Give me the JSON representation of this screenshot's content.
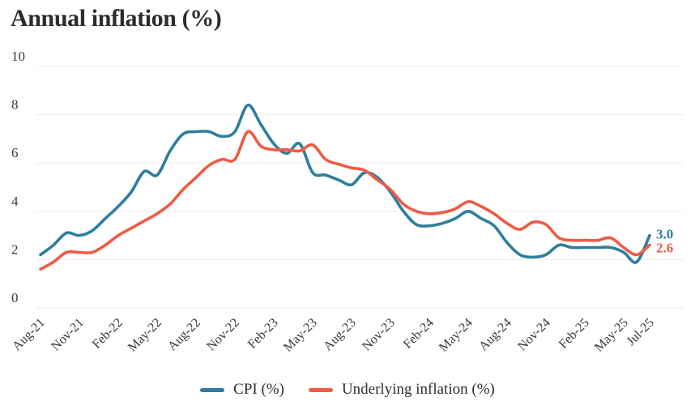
{
  "title": "Annual inflation (%)",
  "chart_data": {
    "type": "line",
    "title": "Annual inflation (%)",
    "x": [
      "Aug-21",
      "Sep-21",
      "Oct-21",
      "Nov-21",
      "Dec-21",
      "Jan-22",
      "Feb-22",
      "Mar-22",
      "Apr-22",
      "May-22",
      "Jun-22",
      "Jul-22",
      "Aug-22",
      "Sep-22",
      "Oct-22",
      "Nov-22",
      "Dec-22",
      "Jan-23",
      "Feb-23",
      "Mar-23",
      "Apr-23",
      "May-23",
      "Jun-23",
      "Jul-23",
      "Aug-23",
      "Sep-23",
      "Oct-23",
      "Nov-23",
      "Dec-23",
      "Jan-24",
      "Feb-24",
      "Mar-24",
      "Apr-24",
      "May-24",
      "Jun-24",
      "Jul-24",
      "Aug-24",
      "Sep-24",
      "Oct-24",
      "Nov-24",
      "Dec-24",
      "Jan-25",
      "Feb-25",
      "Mar-25",
      "Apr-25",
      "May-25",
      "Jun-25",
      "Jul-25"
    ],
    "xtick_labels": [
      "Aug-21",
      "Nov-21",
      "Feb-22",
      "May-22",
      "Aug-22",
      "Nov-22",
      "Feb-23",
      "May-23",
      "Aug-23",
      "Nov-23",
      "Feb-24",
      "May-24",
      "Aug-24",
      "Nov-24",
      "Feb-25",
      "May-25",
      "Jul-25"
    ],
    "xtick_indices": [
      0,
      3,
      6,
      9,
      12,
      15,
      18,
      21,
      24,
      27,
      30,
      33,
      36,
      39,
      42,
      45,
      47
    ],
    "yticks": [
      0,
      2,
      4,
      6,
      8,
      10
    ],
    "ylim": [
      0,
      10
    ],
    "grid": true,
    "legend_position": "bottom",
    "series": [
      {
        "name": "CPI (%)",
        "color": "#2e7e9d",
        "end_label": "3.0",
        "values": [
          2.2,
          2.6,
          3.1,
          3.0,
          3.2,
          3.7,
          4.2,
          4.8,
          5.65,
          5.5,
          6.5,
          7.2,
          7.3,
          7.3,
          7.1,
          7.3,
          8.4,
          7.6,
          6.8,
          6.4,
          6.8,
          5.6,
          5.5,
          5.3,
          5.1,
          5.6,
          5.4,
          4.8,
          4.0,
          3.45,
          3.4,
          3.5,
          3.7,
          4.0,
          3.7,
          3.4,
          2.7,
          2.2,
          2.1,
          2.2,
          2.6,
          2.5,
          2.5,
          2.5,
          2.5,
          2.3,
          1.9,
          3.0
        ]
      },
      {
        "name": "Underlying inflation (%)",
        "color": "#ee5b45",
        "end_label": "2.6",
        "values": [
          1.6,
          1.9,
          2.3,
          2.3,
          2.3,
          2.6,
          3.0,
          3.3,
          3.6,
          3.9,
          4.3,
          4.9,
          5.4,
          5.9,
          6.15,
          6.15,
          7.3,
          6.7,
          6.55,
          6.55,
          6.5,
          6.75,
          6.15,
          5.95,
          5.8,
          5.7,
          5.3,
          4.9,
          4.3,
          4.0,
          3.9,
          3.95,
          4.1,
          4.4,
          4.2,
          3.9,
          3.5,
          3.25,
          3.55,
          3.45,
          2.9,
          2.8,
          2.8,
          2.8,
          2.9,
          2.5,
          2.2,
          2.6
        ]
      }
    ],
    "grid_color": "#ededed",
    "tick_label_color": "#3a3a3a"
  },
  "legend": {
    "items": [
      {
        "label": "CPI (%)",
        "color": "#2e7e9d"
      },
      {
        "label": "Underlying inflation (%)",
        "color": "#ee5b45"
      }
    ]
  }
}
